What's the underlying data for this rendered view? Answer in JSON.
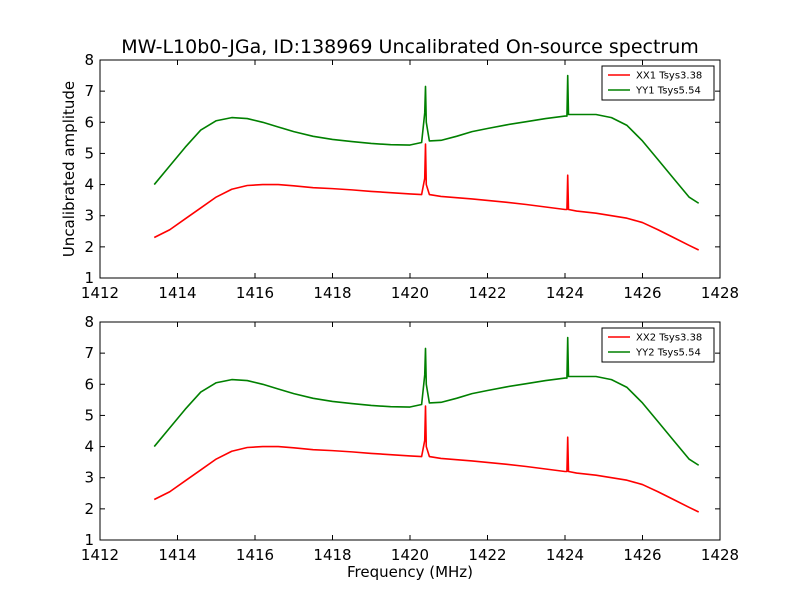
{
  "figure": {
    "title": "MW-L10b0-JGa, ID:138969 Uncalibrated On-source spectrum"
  },
  "chart_data": [
    {
      "type": "line",
      "title": "MW-L10b0-JGa, ID:138969 Uncalibrated On-source spectrum",
      "xlabel": "",
      "ylabel": "Uncalibrated amplitude",
      "xlim": [
        1412,
        1428
      ],
      "ylim": [
        1,
        8
      ],
      "xticks": [
        1412,
        1414,
        1416,
        1418,
        1420,
        1422,
        1424,
        1426,
        1428
      ],
      "yticks": [
        1,
        2,
        3,
        4,
        5,
        6,
        7,
        8
      ],
      "legend_position": "top-right",
      "grid": false,
      "series": [
        {
          "name": "XX1 Tsys3.38",
          "color": "#ff0000",
          "x": [
            1413.4,
            1413.8,
            1414.2,
            1414.6,
            1415.0,
            1415.4,
            1415.8,
            1416.2,
            1416.6,
            1417.0,
            1417.5,
            1418.0,
            1418.5,
            1419.0,
            1419.5,
            1420.0,
            1420.3,
            1420.38,
            1420.4,
            1420.42,
            1420.5,
            1420.8,
            1421.2,
            1421.6,
            1422.0,
            1422.5,
            1423.0,
            1423.5,
            1424.0,
            1424.05,
            1424.07,
            1424.09,
            1424.3,
            1424.8,
            1425.2,
            1425.6,
            1426.0,
            1426.4,
            1426.8,
            1427.2,
            1427.45
          ],
          "values": [
            2.3,
            2.55,
            2.9,
            3.25,
            3.6,
            3.85,
            3.97,
            4.0,
            4.0,
            3.96,
            3.9,
            3.87,
            3.83,
            3.78,
            3.74,
            3.7,
            3.68,
            4.2,
            5.3,
            4.0,
            3.68,
            3.62,
            3.58,
            3.54,
            3.49,
            3.43,
            3.36,
            3.28,
            3.2,
            3.2,
            4.3,
            3.2,
            3.15,
            3.08,
            3.0,
            2.92,
            2.78,
            2.55,
            2.3,
            2.05,
            1.9
          ]
        },
        {
          "name": "YY1 Tsys5.54",
          "color": "#008000",
          "x": [
            1413.4,
            1413.8,
            1414.2,
            1414.6,
            1415.0,
            1415.4,
            1415.8,
            1416.2,
            1416.6,
            1417.0,
            1417.5,
            1418.0,
            1418.5,
            1419.0,
            1419.5,
            1420.0,
            1420.3,
            1420.38,
            1420.4,
            1420.42,
            1420.5,
            1420.8,
            1421.2,
            1421.6,
            1422.0,
            1422.5,
            1423.0,
            1423.5,
            1424.0,
            1424.05,
            1424.07,
            1424.09,
            1424.3,
            1424.8,
            1425.2,
            1425.6,
            1426.0,
            1426.4,
            1426.8,
            1427.2,
            1427.45
          ],
          "values": [
            4.0,
            4.6,
            5.2,
            5.75,
            6.05,
            6.15,
            6.12,
            6.0,
            5.85,
            5.7,
            5.55,
            5.45,
            5.38,
            5.32,
            5.28,
            5.27,
            5.35,
            6.3,
            7.15,
            6.0,
            5.4,
            5.42,
            5.55,
            5.7,
            5.8,
            5.92,
            6.02,
            6.12,
            6.2,
            6.2,
            7.5,
            6.25,
            6.25,
            6.25,
            6.15,
            5.9,
            5.4,
            4.8,
            4.2,
            3.6,
            3.4
          ]
        }
      ]
    },
    {
      "type": "line",
      "title": "",
      "xlabel": "Frequency (MHz)",
      "ylabel": "",
      "xlim": [
        1412,
        1428
      ],
      "ylim": [
        1,
        8
      ],
      "xticks": [
        1412,
        1414,
        1416,
        1418,
        1420,
        1422,
        1424,
        1426,
        1428
      ],
      "yticks": [
        1,
        2,
        3,
        4,
        5,
        6,
        7,
        8
      ],
      "legend_position": "top-right",
      "grid": false,
      "series": [
        {
          "name": "XX2 Tsys3.38",
          "color": "#ff0000",
          "x": [
            1413.4,
            1413.8,
            1414.2,
            1414.6,
            1415.0,
            1415.4,
            1415.8,
            1416.2,
            1416.6,
            1417.0,
            1417.5,
            1418.0,
            1418.5,
            1419.0,
            1419.5,
            1420.0,
            1420.3,
            1420.38,
            1420.4,
            1420.42,
            1420.5,
            1420.8,
            1421.2,
            1421.6,
            1422.0,
            1422.5,
            1423.0,
            1423.5,
            1424.0,
            1424.05,
            1424.07,
            1424.09,
            1424.3,
            1424.8,
            1425.2,
            1425.6,
            1426.0,
            1426.4,
            1426.8,
            1427.2,
            1427.45
          ],
          "values": [
            2.3,
            2.55,
            2.9,
            3.25,
            3.6,
            3.85,
            3.97,
            4.0,
            4.0,
            3.96,
            3.9,
            3.87,
            3.83,
            3.78,
            3.74,
            3.7,
            3.68,
            4.2,
            5.3,
            4.0,
            3.68,
            3.62,
            3.58,
            3.54,
            3.49,
            3.43,
            3.36,
            3.28,
            3.2,
            3.2,
            4.3,
            3.2,
            3.15,
            3.08,
            3.0,
            2.92,
            2.78,
            2.55,
            2.3,
            2.05,
            1.9
          ]
        },
        {
          "name": "YY2 Tsys5.54",
          "color": "#008000",
          "x": [
            1413.4,
            1413.8,
            1414.2,
            1414.6,
            1415.0,
            1415.4,
            1415.8,
            1416.2,
            1416.6,
            1417.0,
            1417.5,
            1418.0,
            1418.5,
            1419.0,
            1419.5,
            1420.0,
            1420.3,
            1420.38,
            1420.4,
            1420.42,
            1420.5,
            1420.8,
            1421.2,
            1421.6,
            1422.0,
            1422.5,
            1423.0,
            1423.5,
            1424.0,
            1424.05,
            1424.07,
            1424.09,
            1424.3,
            1424.8,
            1425.2,
            1425.6,
            1426.0,
            1426.4,
            1426.8,
            1427.2,
            1427.45
          ],
          "values": [
            4.0,
            4.6,
            5.2,
            5.75,
            6.05,
            6.15,
            6.12,
            6.0,
            5.85,
            5.7,
            5.55,
            5.45,
            5.38,
            5.32,
            5.28,
            5.27,
            5.35,
            6.3,
            7.15,
            6.0,
            5.4,
            5.42,
            5.55,
            5.7,
            5.8,
            5.92,
            6.02,
            6.12,
            6.2,
            6.2,
            7.5,
            6.25,
            6.25,
            6.25,
            6.15,
            5.9,
            5.4,
            4.8,
            4.2,
            3.6,
            3.4
          ]
        }
      ]
    }
  ]
}
